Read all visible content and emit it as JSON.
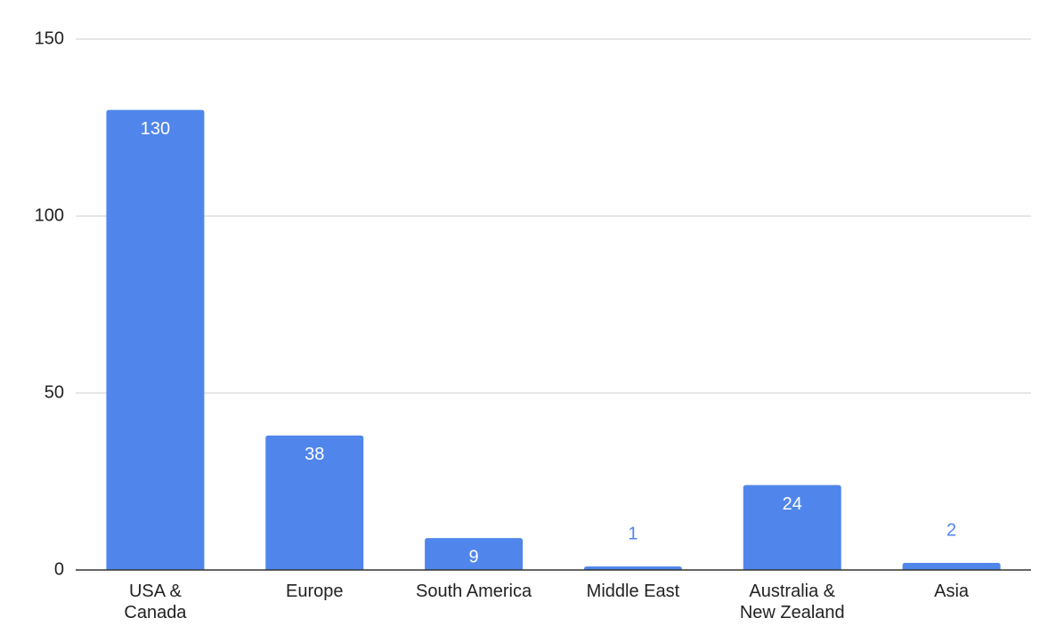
{
  "chart_data": {
    "type": "bar",
    "categories": [
      "USA &\nCanada",
      "Europe",
      "South America",
      "Middle East",
      "Australia &\nNew Zealand",
      "Asia"
    ],
    "values": [
      130,
      38,
      9,
      1,
      24,
      2
    ],
    "color": "#5086ec",
    "ylim": [
      0,
      150
    ],
    "yticks": [
      0,
      50,
      100,
      150
    ],
    "grid": true
  }
}
